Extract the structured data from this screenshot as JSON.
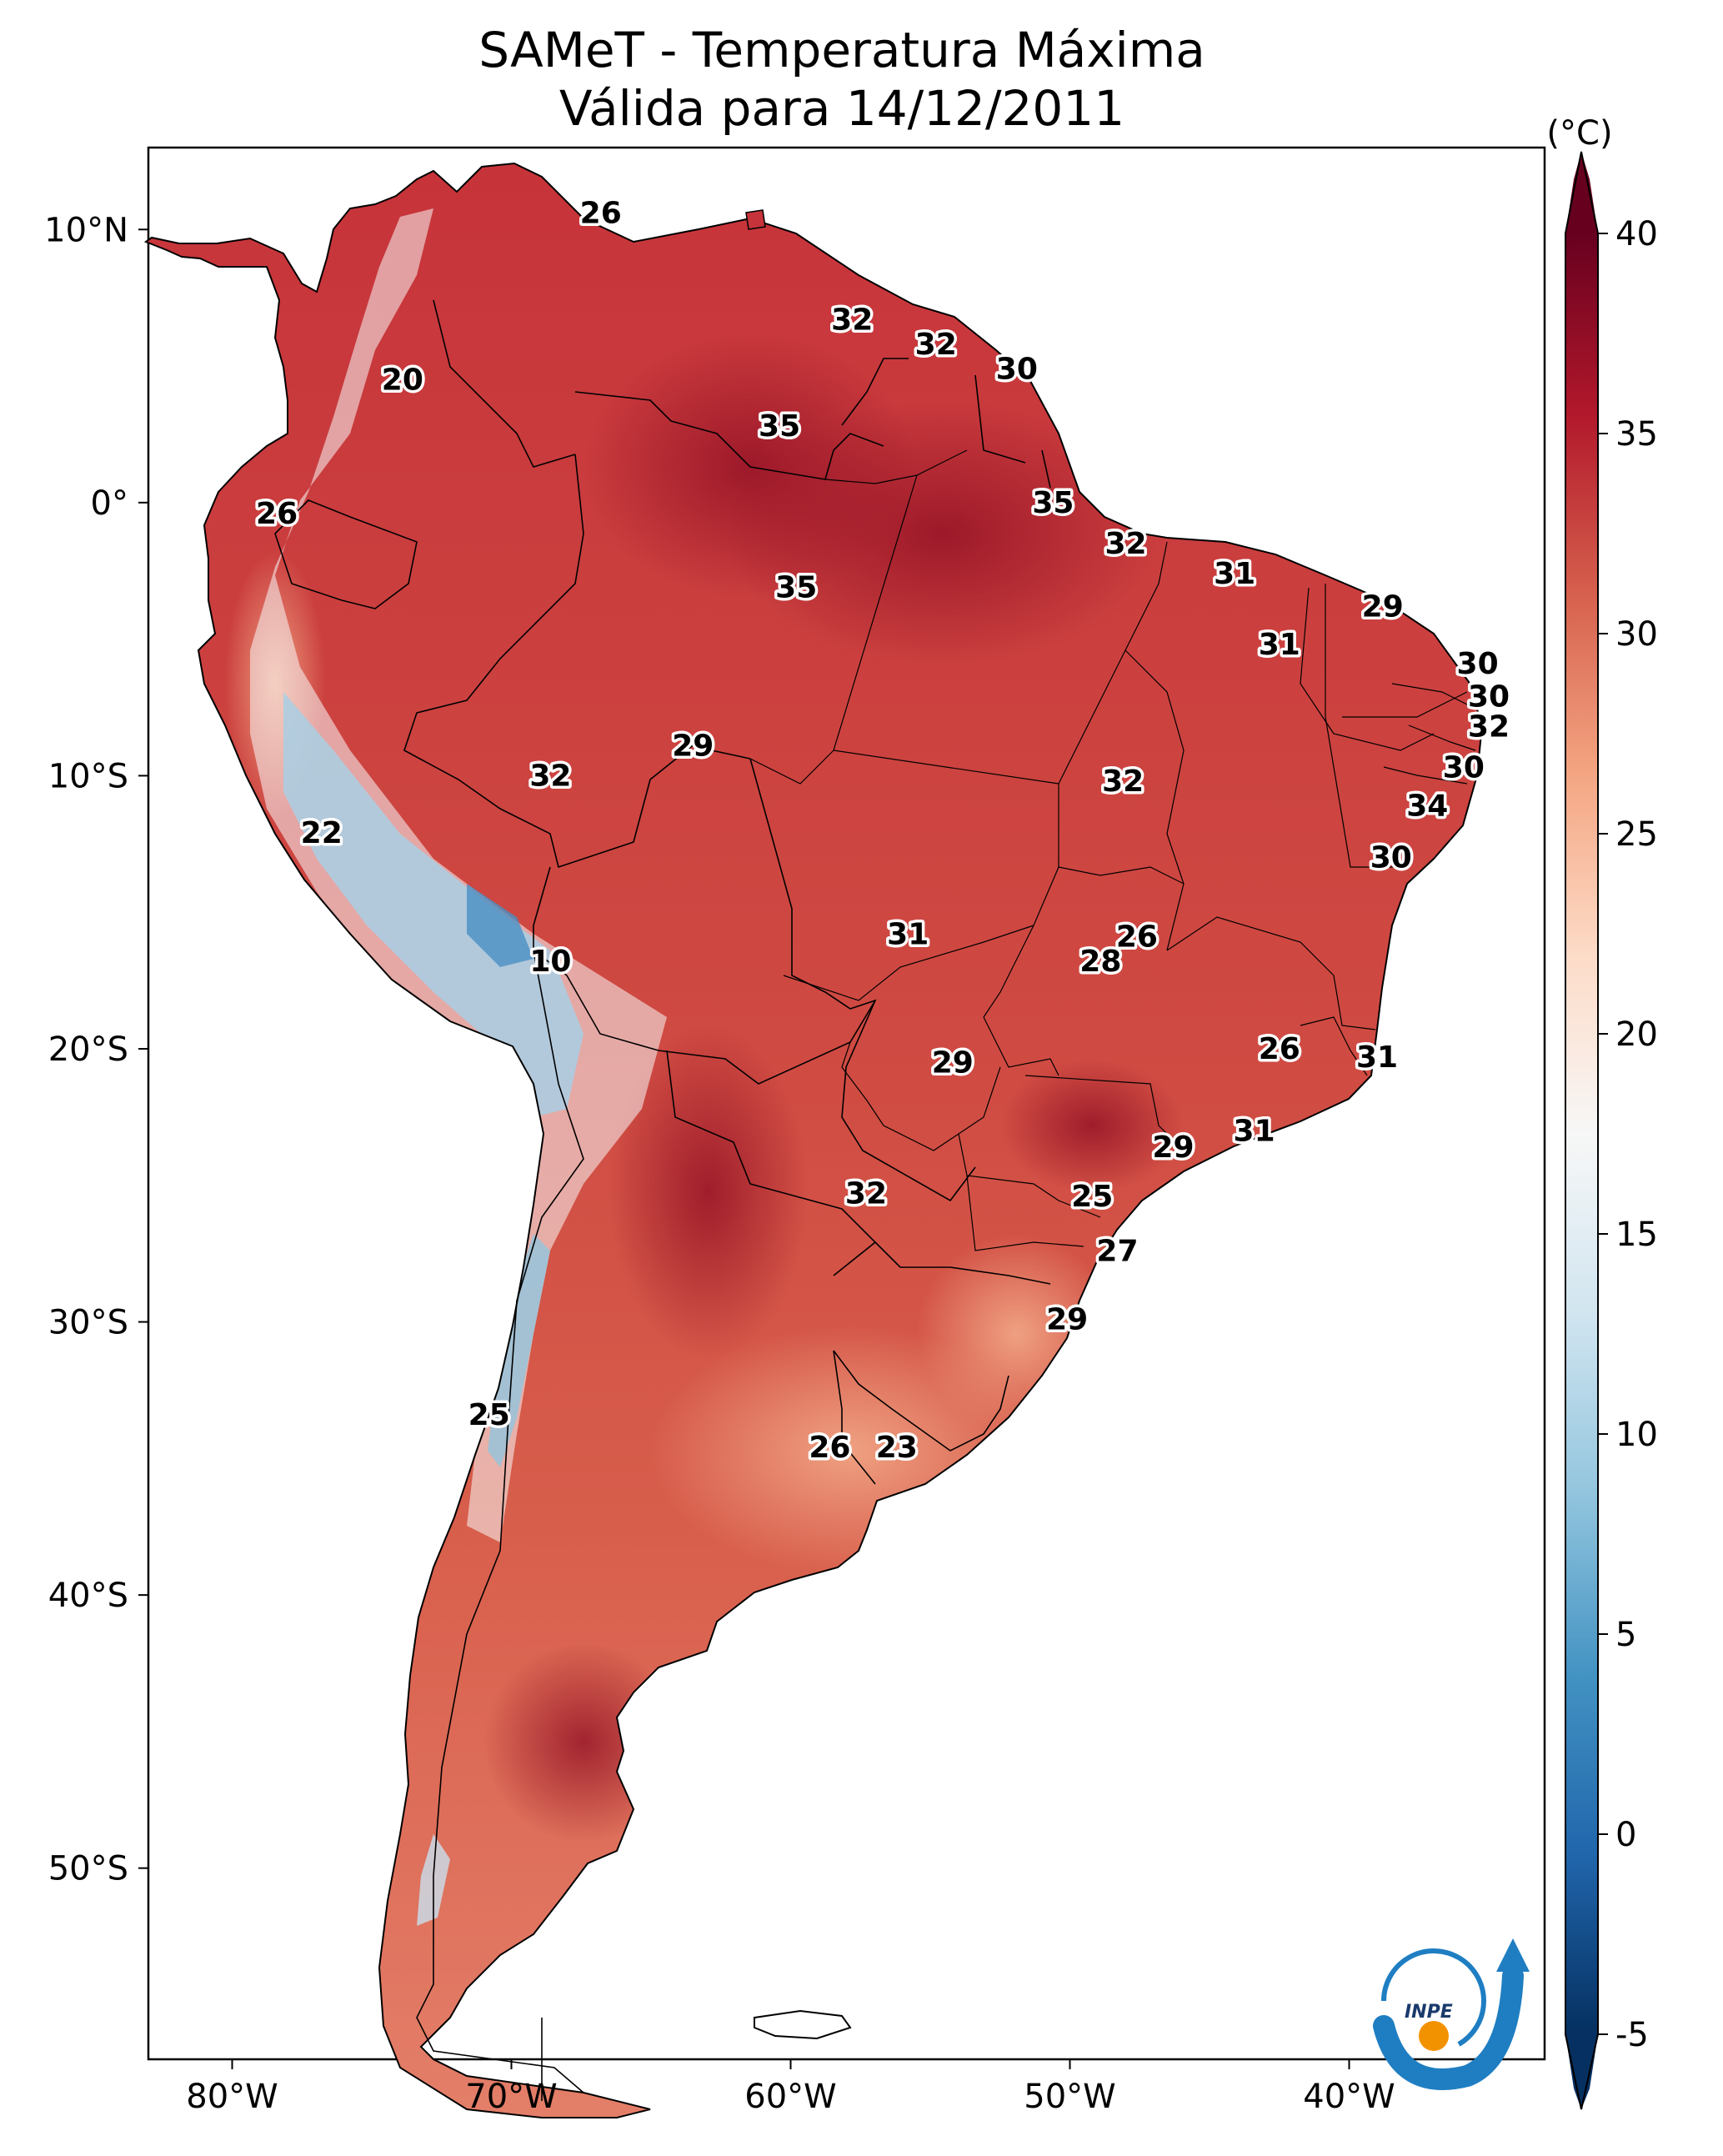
{
  "title": {
    "line1": "SAMeT - Temperatura Máxima",
    "line2": "Válida para 14/12/2011"
  },
  "map": {
    "variable": "Temperatura Máxima",
    "lon_range": [
      -83,
      -33
    ],
    "lat_range": [
      -57,
      13
    ],
    "lon_ticks": [
      "80°W",
      "70°W",
      "60°W",
      "50°W",
      "40°W"
    ],
    "lat_ticks": [
      "10°N",
      "0°",
      "10°S",
      "20°S",
      "30°S",
      "40°S",
      "50°S"
    ],
    "labels": [
      {
        "text": "26",
        "lon": -66.8,
        "lat": 10.6
      },
      {
        "text": "32",
        "lon": -57.8,
        "lat": 6.7
      },
      {
        "text": "32",
        "lon": -54.8,
        "lat": 5.8
      },
      {
        "text": "30",
        "lon": -51.9,
        "lat": 4.9
      },
      {
        "text": "20",
        "lon": -73.9,
        "lat": 4.5
      },
      {
        "text": "35",
        "lon": -60.4,
        "lat": 2.8
      },
      {
        "text": "26",
        "lon": -78.4,
        "lat": -0.4
      },
      {
        "text": "35",
        "lon": -50.6,
        "lat": 0.0
      },
      {
        "text": "32",
        "lon": -48.0,
        "lat": -1.5
      },
      {
        "text": "31",
        "lon": -44.1,
        "lat": -2.6
      },
      {
        "text": "35",
        "lon": -59.8,
        "lat": -3.1
      },
      {
        "text": "29",
        "lon": -38.8,
        "lat": -3.8
      },
      {
        "text": "31",
        "lon": -42.5,
        "lat": -5.2
      },
      {
        "text": "30",
        "lon": -35.4,
        "lat": -5.9
      },
      {
        "text": "30",
        "lon": -35.0,
        "lat": -7.1
      },
      {
        "text": "32",
        "lon": -35.0,
        "lat": -8.2
      },
      {
        "text": "29",
        "lon": -63.5,
        "lat": -8.9
      },
      {
        "text": "30",
        "lon": -35.9,
        "lat": -9.7
      },
      {
        "text": "32",
        "lon": -68.6,
        "lat": -10.0
      },
      {
        "text": "32",
        "lon": -48.1,
        "lat": -10.2
      },
      {
        "text": "34",
        "lon": -37.2,
        "lat": -11.1
      },
      {
        "text": "22",
        "lon": -76.8,
        "lat": -12.1
      },
      {
        "text": "30",
        "lon": -38.5,
        "lat": -13.0
      },
      {
        "text": "31",
        "lon": -55.8,
        "lat": -15.8
      },
      {
        "text": "26",
        "lon": -47.6,
        "lat": -15.9
      },
      {
        "text": "28",
        "lon": -48.9,
        "lat": -16.8
      },
      {
        "text": "10",
        "lon": -68.6,
        "lat": -16.8
      },
      {
        "text": "26",
        "lon": -42.5,
        "lat": -20.0
      },
      {
        "text": "31",
        "lon": -39.0,
        "lat": -20.3
      },
      {
        "text": "29",
        "lon": -54.2,
        "lat": -20.5
      },
      {
        "text": "31",
        "lon": -43.4,
        "lat": -23.0
      },
      {
        "text": "29",
        "lon": -46.3,
        "lat": -23.6
      },
      {
        "text": "32",
        "lon": -57.3,
        "lat": -25.3
      },
      {
        "text": "25",
        "lon": -49.2,
        "lat": -25.4
      },
      {
        "text": "27",
        "lon": -48.3,
        "lat": -27.4
      },
      {
        "text": "29",
        "lon": -50.1,
        "lat": -29.9
      },
      {
        "text": "25",
        "lon": -70.8,
        "lat": -33.4
      },
      {
        "text": "26",
        "lon": -58.6,
        "lat": -34.6
      },
      {
        "text": "23",
        "lon": -56.2,
        "lat": -34.6
      }
    ]
  },
  "colorbar": {
    "unit": "(°C)",
    "min": -5,
    "max": 40,
    "ticks": [
      "-5",
      "0",
      "5",
      "10",
      "15",
      "20",
      "25",
      "30",
      "35",
      "40"
    ]
  },
  "logo": {
    "text": "INPE"
  }
}
